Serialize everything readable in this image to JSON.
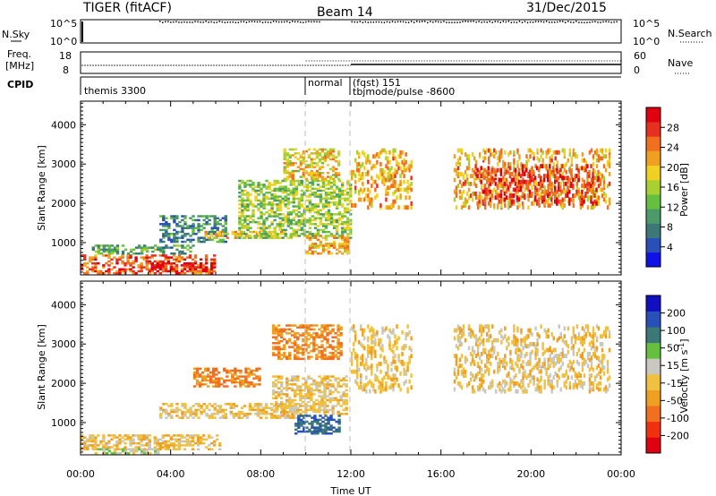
{
  "header": {
    "title": "TIGER (fitACF)",
    "beam": "Beam 14",
    "date": "31/Dec/2015"
  },
  "top_panels": {
    "nsky_label": "N.Sky",
    "nsearch_label": "N.Search",
    "nsky_ticks": [
      "10^5",
      "10^0"
    ],
    "freq_label_1": "Freq.",
    "freq_label_2": "[MHz]",
    "freq_ticks": [
      "18",
      "8"
    ],
    "nave_label": "Nave",
    "nave_ticks": [
      "60",
      "0"
    ],
    "cpid_label": "CPID",
    "cpid_segments": [
      {
        "label": "themis 3300",
        "start_hour": 0
      },
      {
        "label": "normal",
        "start_hour": 10.0
      },
      {
        "label": "(fqst) 151",
        "start_hour": 12.0
      },
      {
        "label": "tbjmode/pulse -8600",
        "start_hour": 12.0
      }
    ]
  },
  "x_axis": {
    "label": "Time UT",
    "ticks": [
      "00:00",
      "04:00",
      "08:00",
      "12:00",
      "16:00",
      "20:00",
      "00:00"
    ],
    "tick_hours": [
      0,
      4,
      8,
      12,
      16,
      20,
      24
    ],
    "range_hours": [
      0,
      24
    ]
  },
  "chart_data": [
    {
      "type": "heatmap",
      "name": "power-panel",
      "ylabel": "Slant Range [km]",
      "yticks": [
        1000,
        2000,
        3000,
        4000
      ],
      "ylim": [
        180,
        4600
      ],
      "xlim_hours": [
        0,
        24
      ],
      "colorbar": {
        "label": "Power [dB]",
        "ticks": [
          "4",
          "8",
          "12",
          "16",
          "20",
          "24",
          "28"
        ],
        "range": [
          0,
          30
        ],
        "colors": [
          "#1010e8",
          "#2850b8",
          "#3c7878",
          "#4c9a6a",
          "#66c040",
          "#a8d030",
          "#f0d020",
          "#f0a020",
          "#f07020",
          "#e83020",
          "#e00010"
        ]
      },
      "regions": [
        {
          "t0": 0.0,
          "t1": 6.0,
          "r0": 200,
          "r1": 700,
          "power": 24
        },
        {
          "t0": 3.0,
          "t1": 6.0,
          "r0": 250,
          "r1": 500,
          "power": 28
        },
        {
          "t0": 0.5,
          "t1": 5.0,
          "r0": 700,
          "r1": 950,
          "power": 10
        },
        {
          "t0": 3.5,
          "t1": 6.5,
          "r0": 1000,
          "r1": 1700,
          "power": 8
        },
        {
          "t0": 5.5,
          "t1": 9.0,
          "r0": 1100,
          "r1": 1300,
          "power": 20
        },
        {
          "t0": 7.0,
          "t1": 12.0,
          "r0": 1100,
          "r1": 2600,
          "power": 14
        },
        {
          "t0": 9.0,
          "t1": 11.5,
          "r0": 2600,
          "r1": 3400,
          "power": 18
        },
        {
          "t0": 10.0,
          "t1": 11.8,
          "r0": 700,
          "r1": 1200,
          "power": 20
        },
        {
          "t0": 12.0,
          "t1": 23.5,
          "r0": 1900,
          "r1": 3400,
          "power": 20
        },
        {
          "t0": 17.5,
          "t1": 23.0,
          "r0": 2000,
          "r1": 3000,
          "power": 26
        }
      ]
    },
    {
      "type": "heatmap",
      "name": "velocity-panel",
      "ylabel": "Slant Range [km]",
      "yticks": [
        1000,
        2000,
        3000,
        4000
      ],
      "ylim": [
        180,
        4600
      ],
      "xlim_hours": [
        0,
        24
      ],
      "colorbar": {
        "label": "Velocity [m s",
        "label_sup": "-1",
        "label_end": "]",
        "ticks": [
          "-200",
          "-100",
          "-50",
          "-15",
          "15",
          "50",
          "100",
          "200"
        ],
        "colors": [
          "#e00010",
          "#f03010",
          "#f07020",
          "#f0a020",
          "#f0c040",
          "#c8c8c0",
          "#66c040",
          "#3c7878",
          "#2850b8",
          "#1010c0"
        ]
      },
      "regions": [
        {
          "t0": 0.0,
          "t1": 6.2,
          "r0": 300,
          "r1": 700,
          "velocity": 0
        },
        {
          "t0": 0.5,
          "t1": 3.5,
          "r0": 200,
          "r1": 350,
          "velocity": 30
        },
        {
          "t0": 3.5,
          "t1": 9.5,
          "r0": 1100,
          "r1": 1500,
          "velocity": 0
        },
        {
          "t0": 5.0,
          "t1": 8.0,
          "r0": 1900,
          "r1": 2400,
          "velocity": -60
        },
        {
          "t0": 8.5,
          "t1": 11.8,
          "r0": 1200,
          "r1": 2200,
          "velocity": 0
        },
        {
          "t0": 9.5,
          "t1": 11.5,
          "r0": 700,
          "r1": 1200,
          "velocity": 200
        },
        {
          "t0": 8.5,
          "t1": 11.5,
          "r0": 2600,
          "r1": 3500,
          "velocity": -50
        },
        {
          "t0": 12.0,
          "t1": 23.5,
          "r0": 1800,
          "r1": 3500,
          "velocity": 0
        }
      ]
    }
  ]
}
